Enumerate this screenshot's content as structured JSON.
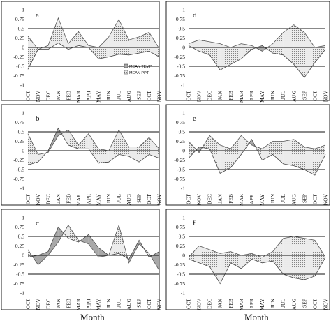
{
  "figure": {
    "xlabel_left": "Month",
    "xlabel_right": "Month"
  },
  "chart_data": [
    {
      "type": "area",
      "panel_label": "a",
      "categories": [
        "OCT",
        "NOV",
        "DEC",
        "JAN",
        "FEB",
        "MAR",
        "APR",
        "MAY",
        "JUN",
        "JUL",
        "AUG",
        "SEP",
        "OCT",
        "NOV"
      ],
      "series": [
        {
          "name": "MEAN TEMP",
          "values": [
            0.3,
            -0.05,
            0.05,
            0.78,
            0.1,
            0.42,
            0.05,
            0.0,
            0.28,
            0.74,
            0.2,
            0.28,
            0.4,
            -0.03
          ]
        },
        {
          "name": "MEAN PPT",
          "values": [
            -0.58,
            -0.05,
            -0.05,
            0.12,
            -0.05,
            0.05,
            0.0,
            -0.3,
            -0.25,
            -0.18,
            -0.2,
            -0.15,
            -0.1,
            -0.25
          ]
        }
      ],
      "yticks": [
        "1",
        "0.75",
        "0.5",
        "0.25",
        "0",
        "-0.25",
        "-0.5",
        "-0.75",
        "-1"
      ],
      "ylim": [
        -1,
        1
      ],
      "reference_lines": [
        0.5,
        0,
        -0.5
      ],
      "legend": "bottom-right"
    },
    {
      "type": "area",
      "panel_label": "b",
      "categories": [
        "OCT",
        "NOV",
        "DEC",
        "JAN",
        "FEB",
        "MAR",
        "APR",
        "MAY",
        "JUN",
        "JUL",
        "AUG",
        "SEP",
        "OCT",
        "NOV"
      ],
      "series": [
        {
          "name": "MEAN TEMP",
          "values": [
            0.45,
            -0.1,
            -0.05,
            0.4,
            0.55,
            0.15,
            0.45,
            0.05,
            0.0,
            0.55,
            0.1,
            0.1,
            0.35,
            0.05
          ]
        },
        {
          "name": "MEAN PPT",
          "values": [
            -0.38,
            -0.3,
            0.0,
            0.6,
            0.15,
            0.05,
            0.05,
            -0.33,
            -0.3,
            -0.1,
            -0.15,
            -0.3,
            -0.1,
            -0.2
          ]
        }
      ],
      "yticks": [
        "1",
        "0.75",
        "0.5",
        "0.25",
        "0",
        "-0.25",
        "-0.5",
        "-0.75",
        "-1"
      ],
      "ylim": [
        -1,
        1
      ],
      "reference_lines": [
        0.5,
        0,
        -0.5
      ]
    },
    {
      "type": "area",
      "panel_label": "c",
      "categories": [
        "OCT",
        "NOV",
        "DEC",
        "JAN",
        "FEB",
        "MAR",
        "APR",
        "MAY",
        "JUN",
        "JUL",
        "AUG",
        "SEP",
        "OCT",
        "NOV"
      ],
      "series": [
        {
          "name": "MEAN TEMP",
          "values": [
            0.15,
            -0.25,
            0.0,
            0.35,
            0.8,
            0.4,
            0.3,
            -0.05,
            0.0,
            0.8,
            -0.2,
            0.3,
            0.05,
            -0.4
          ]
        },
        {
          "name": "MEAN PPT",
          "values": [
            -0.05,
            0.0,
            0.1,
            0.75,
            0.45,
            0.35,
            0.55,
            0.2,
            0.0,
            0.05,
            -0.1,
            0.4,
            -0.05,
            0.1
          ]
        }
      ],
      "yticks": [
        "1",
        "0.75",
        "0.5",
        "0.25",
        "0",
        "-0.25",
        "-0.5",
        "-0.75",
        "-1"
      ],
      "ylim": [
        -1,
        1
      ],
      "reference_lines": [
        0.5,
        0,
        -0.5
      ]
    },
    {
      "type": "area",
      "panel_label": "d",
      "categories": [
        "OCT",
        "NOV",
        "DEC",
        "JAN",
        "FEB",
        "MAR",
        "APR",
        "MAY",
        "JUN",
        "JUL",
        "AUG",
        "SEP",
        "OCT",
        "NOV"
      ],
      "series": [
        {
          "name": "MEAN TEMP",
          "values": [
            0.1,
            0.2,
            0.15,
            0.1,
            0.0,
            0.1,
            0.05,
            -0.1,
            0.1,
            0.4,
            0.6,
            0.4,
            0.0,
            0.05
          ]
        },
        {
          "name": "MEAN PPT",
          "values": [
            0.05,
            -0.1,
            -0.2,
            -0.6,
            -0.45,
            -0.3,
            -0.05,
            0.05,
            -0.15,
            -0.2,
            -0.45,
            -0.8,
            -0.4,
            -0.05
          ]
        }
      ],
      "yticks": [
        "1",
        "0.75",
        "0.5",
        "0.25",
        "0",
        "-0.25",
        "-0.5",
        "-0.75",
        "-1"
      ],
      "ylim": [
        -1,
        1
      ],
      "reference_lines": [
        0.5,
        0,
        -0.5
      ]
    },
    {
      "type": "area",
      "panel_label": "e",
      "categories": [
        "OCT",
        "NOV",
        "DEC",
        "JAN",
        "FEB",
        "MAR",
        "APR",
        "MAY",
        "JUN",
        "JUL",
        "AUG",
        "SEP",
        "OCT",
        "NOV"
      ],
      "series": [
        {
          "name": "MEAN TEMP",
          "values": [
            0.25,
            -0.05,
            0.4,
            0.15,
            0.05,
            0.4,
            0.15,
            0.05,
            0.25,
            0.25,
            0.3,
            0.1,
            0.05,
            0.15
          ]
        },
        {
          "name": "MEAN PPT",
          "values": [
            -0.2,
            0.1,
            0.05,
            -0.6,
            -0.45,
            -0.1,
            0.3,
            -0.25,
            -0.1,
            -0.35,
            -0.4,
            -0.5,
            -0.65,
            -0.1
          ]
        }
      ],
      "yticks": [
        "1",
        "0.75",
        "0.5",
        "0.25",
        "0",
        "-0.25",
        "-0.5",
        "-0.75",
        "-1"
      ],
      "ylim": [
        -1,
        1
      ],
      "reference_lines": [
        0.5,
        0,
        -0.5
      ]
    },
    {
      "type": "area",
      "panel_label": "f",
      "categories": [
        "OCT",
        "NOV",
        "DEC",
        "JAN",
        "FEB",
        "MAR",
        "APR",
        "MAY",
        "JUN",
        "JUL",
        "AUG",
        "SEP",
        "OCT",
        "NOV"
      ],
      "series": [
        {
          "name": "MEAN TEMP",
          "values": [
            -0.05,
            0.25,
            0.15,
            0.05,
            0.1,
            0.0,
            0.05,
            -0.05,
            0.1,
            0.45,
            0.5,
            0.45,
            0.4,
            -0.05
          ]
        },
        {
          "name": "MEAN PPT",
          "values": [
            -0.1,
            -0.2,
            -0.3,
            -0.75,
            -0.2,
            -0.35,
            -0.1,
            -0.2,
            -0.15,
            -0.5,
            -0.6,
            -0.65,
            -0.55,
            -0.05
          ]
        }
      ],
      "yticks": [
        "1",
        "0.75",
        "0.5",
        "0.25",
        "0",
        "-0.25",
        "-0.5",
        "-0.75",
        "-1"
      ],
      "ylim": [
        -1,
        1
      ],
      "reference_lines": [
        0.5,
        0,
        -0.5
      ]
    }
  ]
}
